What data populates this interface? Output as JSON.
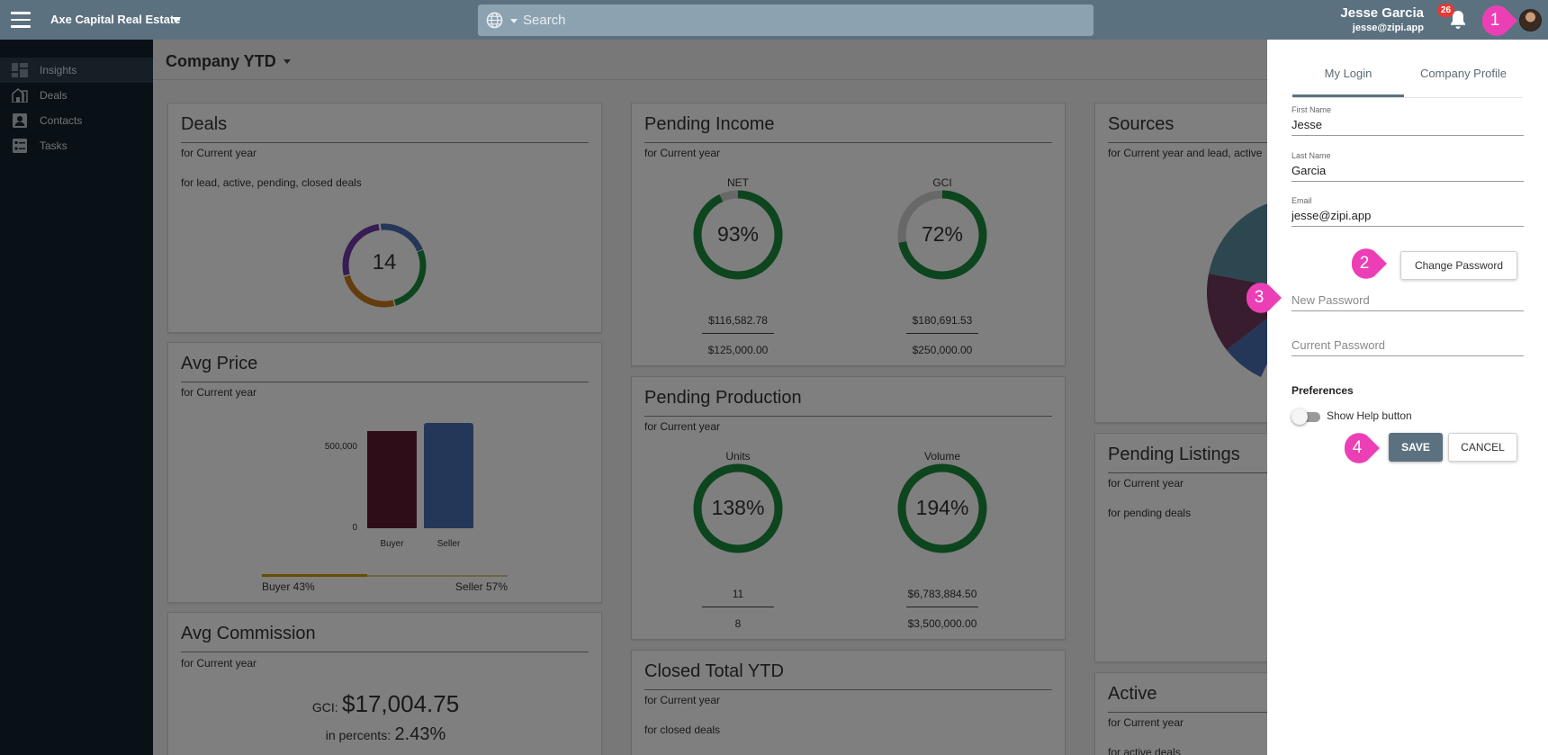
{
  "topbar": {
    "brand": "Axe Capital Real Estate",
    "search_placeholder": "Search",
    "user_name": "Jesse Garcia",
    "user_email": "jesse@zipi.app",
    "notification_count": "26"
  },
  "sidebar": {
    "items": [
      {
        "label": "Insights",
        "icon": "insights-icon"
      },
      {
        "label": "Deals",
        "icon": "deals-icon"
      },
      {
        "label": "Contacts",
        "icon": "contacts-icon"
      },
      {
        "label": "Tasks",
        "icon": "tasks-icon"
      }
    ]
  },
  "main": {
    "title": "Company YTD",
    "cards": {
      "deals": {
        "title": "Deals",
        "sub1": "for Current year",
        "sub2": "for lead, active, pending, closed deals",
        "total": "14"
      },
      "pending_income": {
        "title": "Pending Income",
        "sub": "for Current year",
        "net": {
          "label": "NET",
          "percent": "93%",
          "value": "$116,582.78",
          "target": "$125,000.00",
          "fraction": 0.93
        },
        "gci": {
          "label": "GCI",
          "percent": "72%",
          "value": "$180,691.53",
          "target": "$250,000.00",
          "fraction": 0.72
        }
      },
      "sources": {
        "title": "Sources",
        "sub": "for Current year and lead, active"
      },
      "avg_price": {
        "title": "Avg Price",
        "sub": "for Current year",
        "y_ticks": [
          "500,000",
          "0"
        ],
        "categories": [
          "Buyer",
          "Seller"
        ],
        "buyer_label": "Buyer 43%",
        "seller_label": "Seller 57%",
        "buyer_fraction": 0.43
      },
      "pending_production": {
        "title": "Pending Production",
        "sub": "for Current year",
        "units": {
          "label": "Units",
          "percent": "138%",
          "value": "11",
          "target": "8",
          "fraction": 1.0
        },
        "volume": {
          "label": "Volume",
          "percent": "194%",
          "value": "$6,783,884.50",
          "target": "$3,500,000.00",
          "fraction": 1.0
        }
      },
      "pending_listings": {
        "title": "Pending Listings",
        "sub1": "for Current year",
        "sub2": "for pending deals"
      },
      "avg_commission": {
        "title": "Avg Commission",
        "sub": "for Current year",
        "gci_label": "GCI:",
        "gci_value": "$17,004.75",
        "pct_label": "in percents:",
        "pct_value": "2.43%"
      },
      "closed_total": {
        "title": "Closed Total YTD",
        "sub1": "for Current year",
        "sub2": "for closed deals"
      },
      "active": {
        "title": "Active",
        "sub1": "for Current year",
        "sub2": "for active deals"
      }
    }
  },
  "panel": {
    "tabs": [
      "My Login",
      "Company Profile"
    ],
    "first_name_label": "First Name",
    "first_name": "Jesse",
    "last_name_label": "Last Name",
    "last_name": "Garcia",
    "email_label": "Email",
    "email": "jesse@zipi.app",
    "change_password": "Change Password",
    "new_password_placeholder": "New Password",
    "current_password_placeholder": "Current Password",
    "preferences_title": "Preferences",
    "show_help_label": "Show Help button",
    "save": "SAVE",
    "cancel": "CANCEL"
  },
  "markers": [
    "1",
    "2",
    "3",
    "4"
  ],
  "colors": {
    "topbar": "#5b7180",
    "sidebar": "#13212c",
    "accent": "#5b7180",
    "marker": "#ec3fb6",
    "donut_green": "#1b8a3c",
    "buyer_bar": "#5e1a31",
    "seller_bar": "#4a6fb0",
    "badge": "#e53935"
  }
}
